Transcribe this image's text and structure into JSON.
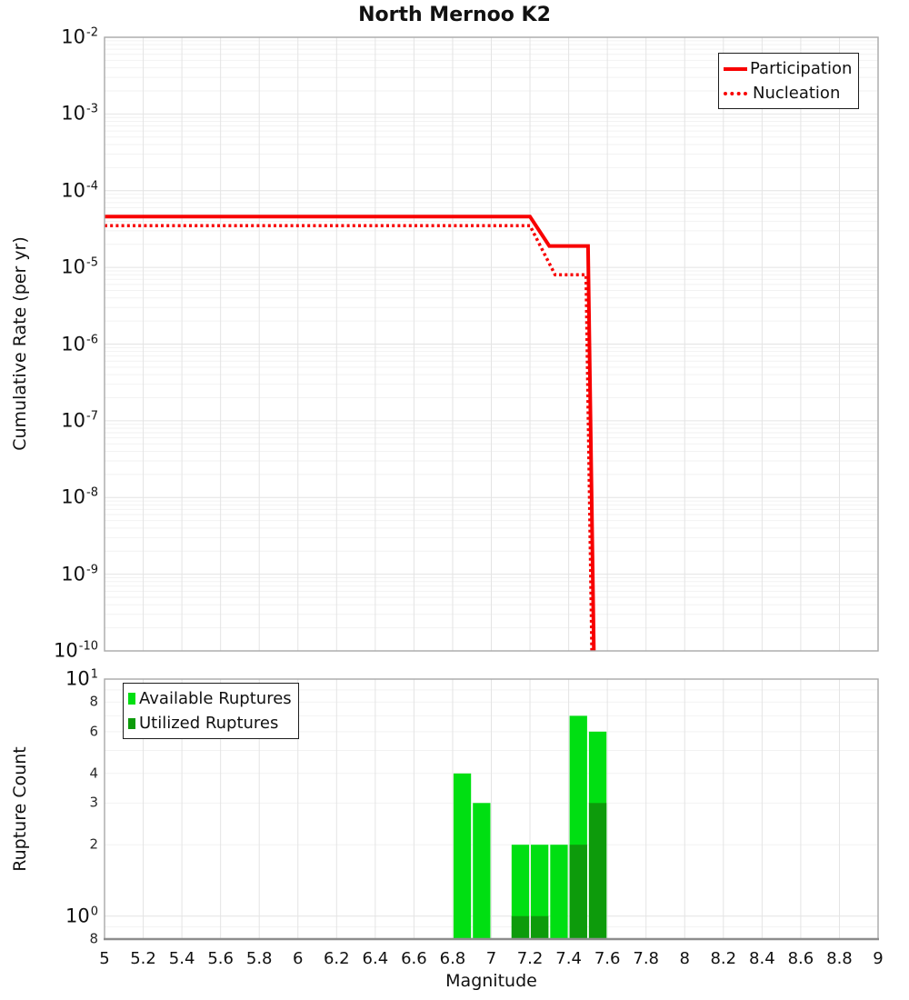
{
  "title": "North Mernoo K2",
  "colors": {
    "line_red": "#f80000",
    "available_green": "#00df12",
    "utilized_green": "#0d9b0b",
    "grid_major": "#e4e4e4",
    "grid_minor": "#f2f2f2",
    "axis_border": "#a9a9a9",
    "bottom_axis": "#8d8d8d",
    "legend_border": "#1d1d1d",
    "text": "#111111"
  },
  "x_axis": {
    "label": "Magnitude",
    "tick_values": [
      5,
      5.2,
      5.4,
      5.6,
      5.8,
      6,
      6.2,
      6.4,
      6.6,
      6.8,
      7,
      7.2,
      7.4,
      7.6,
      7.8,
      8,
      8.2,
      8.4,
      8.6,
      8.8,
      9
    ],
    "tick_labels": [
      "5",
      "5.2",
      "5.4",
      "5.6",
      "5.8",
      "6",
      "6.2",
      "6.4",
      "6.6",
      "6.8",
      "7",
      "7.2",
      "7.4",
      "7.6",
      "7.8",
      "8",
      "8.2",
      "8.4",
      "8.6",
      "8.8",
      "9"
    ]
  },
  "top_panel": {
    "ylabel": "Cumulative Rate (per yr)",
    "ytick_exponents": [
      -2,
      -3,
      -4,
      -5,
      -6,
      -7,
      -8,
      -9,
      -10
    ],
    "legend": [
      {
        "label": "Participation",
        "style": "solid"
      },
      {
        "label": "Nucleation",
        "style": "dotted"
      }
    ]
  },
  "bottom_panel": {
    "ylabel": "Rupture Count",
    "yticks": [
      {
        "value": 10,
        "label": "10",
        "exp": "1",
        "major": true
      },
      {
        "value": 8,
        "label": "8",
        "major": false
      },
      {
        "value": 6,
        "label": "6",
        "major": false
      },
      {
        "value": 4,
        "label": "4",
        "major": false
      },
      {
        "value": 3,
        "label": "3",
        "major": false
      },
      {
        "value": 2,
        "label": "2",
        "major": false
      },
      {
        "value": 1,
        "label": "10",
        "exp": "0",
        "major": true
      },
      {
        "value": 0.8,
        "label": "8",
        "major": false
      }
    ],
    "minor_grid_values": [
      0.9,
      2,
      3,
      4,
      5,
      6,
      7,
      8,
      9
    ],
    "major_grid_values": [
      1
    ],
    "legend": [
      {
        "label": "Available Ruptures"
      },
      {
        "label": "Utilized Ruptures"
      }
    ]
  },
  "chart_data": [
    {
      "type": "line",
      "title": "North Mernoo K2",
      "xlabel": "Magnitude",
      "ylabel": "Cumulative Rate (per yr)",
      "xlim": [
        5,
        9
      ],
      "ylim": [
        1e-10,
        0.01
      ],
      "xscale": "linear",
      "yscale": "log",
      "grid": true,
      "legend_position": "top-right",
      "series": [
        {
          "name": "Participation",
          "style": "solid",
          "color": "#f80000",
          "line_width": 4,
          "points": [
            [
              5,
              4.6e-05
            ],
            [
              7.2,
              4.6e-05
            ],
            [
              7.3,
              1.9e-05
            ],
            [
              7.5,
              1.9e-05
            ],
            [
              7.53,
              1e-10
            ]
          ]
        },
        {
          "name": "Nucleation",
          "style": "dotted",
          "color": "#f80000",
          "line_width": 3.5,
          "points": [
            [
              5,
              3.5e-05
            ],
            [
              7.2,
              3.5e-05
            ],
            [
              7.33,
              8e-06
            ],
            [
              7.49,
              8e-06
            ],
            [
              7.52,
              1e-10
            ]
          ]
        }
      ]
    },
    {
      "type": "bar",
      "xlabel": "Magnitude",
      "ylabel": "Rupture Count",
      "xlim": [
        5,
        9
      ],
      "ylim": [
        0.8,
        10
      ],
      "yscale": "log",
      "bar_width": 0.1,
      "legend_position": "top-left",
      "series": [
        {
          "name": "Available Ruptures",
          "color": "#00df12",
          "bins": [
            {
              "mag": 6.85,
              "count": 4
            },
            {
              "mag": 6.95,
              "count": 3
            },
            {
              "mag": 7.15,
              "count": 2
            },
            {
              "mag": 7.25,
              "count": 2
            },
            {
              "mag": 7.35,
              "count": 2
            },
            {
              "mag": 7.45,
              "count": 7
            },
            {
              "mag": 7.55,
              "count": 6
            }
          ]
        },
        {
          "name": "Utilized Ruptures",
          "color": "#0d9b0b",
          "bins": [
            {
              "mag": 7.15,
              "count": 1
            },
            {
              "mag": 7.25,
              "count": 1
            },
            {
              "mag": 7.45,
              "count": 2
            },
            {
              "mag": 7.55,
              "count": 3
            }
          ]
        }
      ]
    }
  ]
}
